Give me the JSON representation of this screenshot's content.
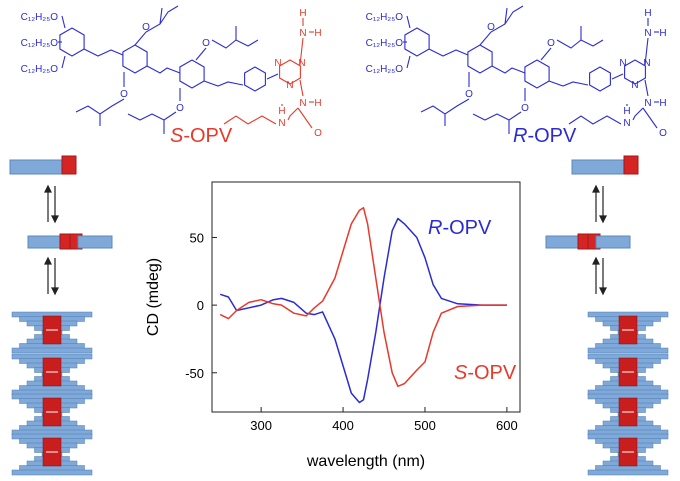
{
  "molecules": [
    {
      "name": "S-OPV",
      "color": "#e8392a",
      "core_color": "#2b2bd6",
      "alkoxy": [
        "C₁₂H₂₅O",
        "C₁₂H₂₅O",
        "C₁₂H₂₅O"
      ],
      "atoms": [
        "O",
        "O",
        "O",
        "O",
        "N",
        "N",
        "N",
        "H",
        "N",
        "H",
        "N",
        "H",
        "H",
        "N",
        "O"
      ]
    },
    {
      "name": "R-OPV",
      "color": "#2b2bd6",
      "core_color": "#2b2bd6",
      "alkoxy": [
        "C₁₂H₂₅O",
        "C₁₂H₂₅O",
        "C₁₂H₂₅O"
      ],
      "atoms": [
        "O",
        "O",
        "O",
        "O",
        "N",
        "N",
        "N",
        "H",
        "N",
        "H",
        "N",
        "H",
        "H",
        "N",
        "O"
      ]
    }
  ],
  "chart_data": {
    "type": "line",
    "xlabel": "wavelength (nm)",
    "ylabel": "CD (mdeg)",
    "x": [
      250,
      260,
      270,
      285,
      300,
      315,
      325,
      340,
      355,
      365,
      375,
      390,
      400,
      410,
      420,
      425,
      430,
      440,
      450,
      460,
      467,
      475,
      490,
      500,
      510,
      520,
      540,
      570,
      600
    ],
    "series": [
      {
        "name": "R-OPV",
        "color": "#2b2bd6",
        "values": [
          8,
          6,
          -4,
          -2,
          0,
          4,
          5,
          2,
          -6,
          -7,
          -5,
          -25,
          -45,
          -65,
          -72,
          -70,
          -55,
          -20,
          20,
          55,
          64,
          60,
          50,
          35,
          15,
          5,
          1,
          0,
          0
        ]
      },
      {
        "name": "S-OPV",
        "color": "#e8392a",
        "values": [
          -7,
          -10,
          -4,
          2,
          4,
          1,
          0,
          -6,
          -8,
          -2,
          3,
          20,
          40,
          60,
          70,
          72,
          60,
          20,
          -20,
          -50,
          -60,
          -58,
          -48,
          -42,
          -20,
          -6,
          -1,
          0,
          0
        ]
      }
    ],
    "xlim": [
      240,
      616
    ],
    "ylim": [
      -79,
      91
    ],
    "xticks": [
      300,
      400,
      500,
      600
    ],
    "yticks": [
      -50,
      0,
      50
    ]
  }
}
